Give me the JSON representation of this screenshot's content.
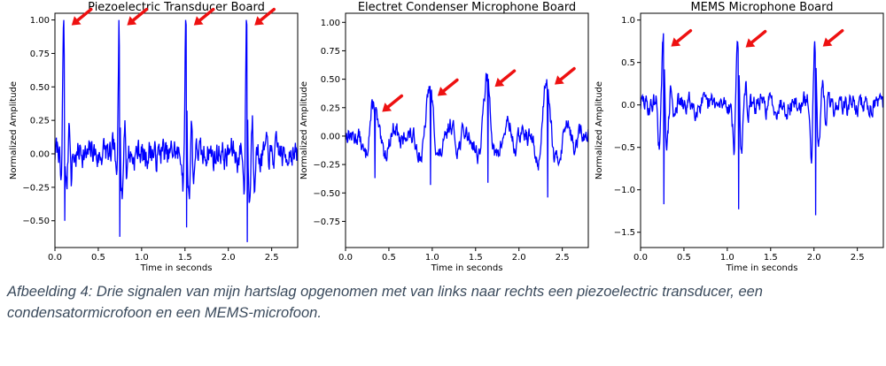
{
  "caption": "Afbeelding 4: Drie signalen van mijn hartslag opgenomen met van links naar rechts een piezoelectric transducer, een condensatormicrofoon en een MEMS-microfoon.",
  "colors": {
    "line": "#0000ff",
    "arrow": "#ee1111"
  },
  "chart_data": [
    {
      "type": "line",
      "title": "Piezoelectric Transducer Board",
      "xlabel": "Time in seconds",
      "ylabel": "Normalized Amplitude",
      "xlim": [
        0,
        2.8
      ],
      "ylim": [
        -0.7,
        1.05
      ],
      "xticks": [
        0.0,
        0.5,
        1.0,
        1.5,
        2.0,
        2.5
      ],
      "xtick_labels": [
        "0.0",
        "0.5",
        "1.0",
        "1.5",
        "2.0",
        "2.5"
      ],
      "yticks": [
        -0.5,
        -0.25,
        0.0,
        0.25,
        0.5,
        0.75,
        1.0
      ],
      "ytick_labels": [
        "−0.50",
        "−0.25",
        "0.00",
        "0.25",
        "0.50",
        "0.75",
        "1.00"
      ],
      "peaks": [
        {
          "t": 0.1,
          "hi": 1.0,
          "lo": -0.5
        },
        {
          "t": 0.74,
          "hi": 1.0,
          "lo": -0.62
        },
        {
          "t": 1.51,
          "hi": 1.0,
          "lo": -0.55
        },
        {
          "t": 2.21,
          "hi": 1.0,
          "lo": -0.66
        }
      ],
      "peak_width": 0.025,
      "noise": 0.12,
      "seed": 7,
      "annotation": "red arrows point to each heartbeat peak"
    },
    {
      "type": "line",
      "title": "Electret Condenser Microphone Board",
      "xlabel": "Time in seconds",
      "ylabel": "Normalized Amplitude",
      "xlim": [
        0,
        2.8
      ],
      "ylim": [
        -0.98,
        1.08
      ],
      "xticks": [
        0.0,
        0.5,
        1.0,
        1.5,
        2.0,
        2.5
      ],
      "xtick_labels": [
        "0.0",
        "0.5",
        "1.0",
        "1.5",
        "2.0",
        "2.5"
      ],
      "yticks": [
        -0.75,
        -0.5,
        -0.25,
        0.0,
        0.25,
        0.5,
        0.75,
        1.0
      ],
      "ytick_labels": [
        "−0.75",
        "−0.50",
        "−0.25",
        "0.00",
        "0.25",
        "0.50",
        "0.75",
        "1.00"
      ],
      "peaks": [
        {
          "t": 0.33,
          "hi": 0.26,
          "lo": -0.37
        },
        {
          "t": 0.97,
          "hi": 0.4,
          "lo": -0.43
        },
        {
          "t": 1.63,
          "hi": 0.48,
          "lo": -0.41
        },
        {
          "t": 2.32,
          "hi": 0.5,
          "lo": -0.54
        }
      ],
      "peak_width": 0.09,
      "noise": 0.09,
      "seed": 13,
      "annotation": "red arrows point to each heartbeat peak"
    },
    {
      "type": "line",
      "title": "MEMS Microphone Board",
      "xlabel": "Time in seconds",
      "ylabel": "Normalized Amplitude",
      "xlim": [
        0,
        2.8
      ],
      "ylim": [
        -1.68,
        1.08
      ],
      "xticks": [
        0.0,
        0.5,
        1.0,
        1.5,
        2.0,
        2.5
      ],
      "xtick_labels": [
        "0.0",
        "0.5",
        "1.0",
        "1.5",
        "2.0",
        "2.5"
      ],
      "yticks": [
        -1.5,
        -1.0,
        -0.5,
        0.0,
        0.5,
        1.0
      ],
      "ytick_labels": [
        "−1.5",
        "−1.0",
        "−0.5",
        "0.0",
        "0.5",
        "1.0"
      ],
      "peaks": [
        {
          "t": 0.26,
          "hi": 0.75,
          "lo": -1.17
        },
        {
          "t": 1.12,
          "hi": 0.74,
          "lo": -1.23
        },
        {
          "t": 2.01,
          "hi": 0.75,
          "lo": -1.3
        }
      ],
      "peak_width": 0.035,
      "noise": 0.13,
      "seed": 29,
      "annotation": "red arrows point to each heartbeat peak"
    }
  ]
}
